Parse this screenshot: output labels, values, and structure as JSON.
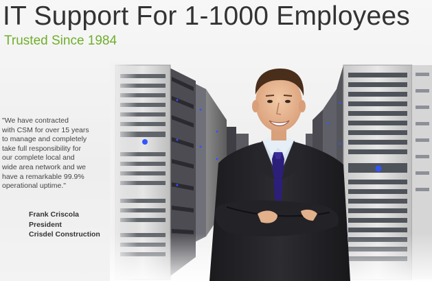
{
  "header": {
    "headline": "IT Support For 1-1000 Employees",
    "tagline": "Trusted Since 1984"
  },
  "testimonial": {
    "quote_lines": [
      "\"We have contracted",
      "with CSM for over 15 years",
      "to manage and completely",
      "take full responsibility for",
      "our complete local and",
      "wide area network and we",
      "have a remarkable 99.9%",
      "operational uptime.\""
    ],
    "author_name": "Frank Criscola",
    "author_title": "President",
    "author_company": "Crisdel Construction"
  },
  "colors": {
    "tagline_green": "#6fae2b",
    "headline_gray": "#333333",
    "server_led_blue": "#2244ee",
    "tie_purple": "#2c1f7a"
  },
  "icons": {
    "server_racks": "server-rack-image",
    "person": "businessman-photo"
  }
}
